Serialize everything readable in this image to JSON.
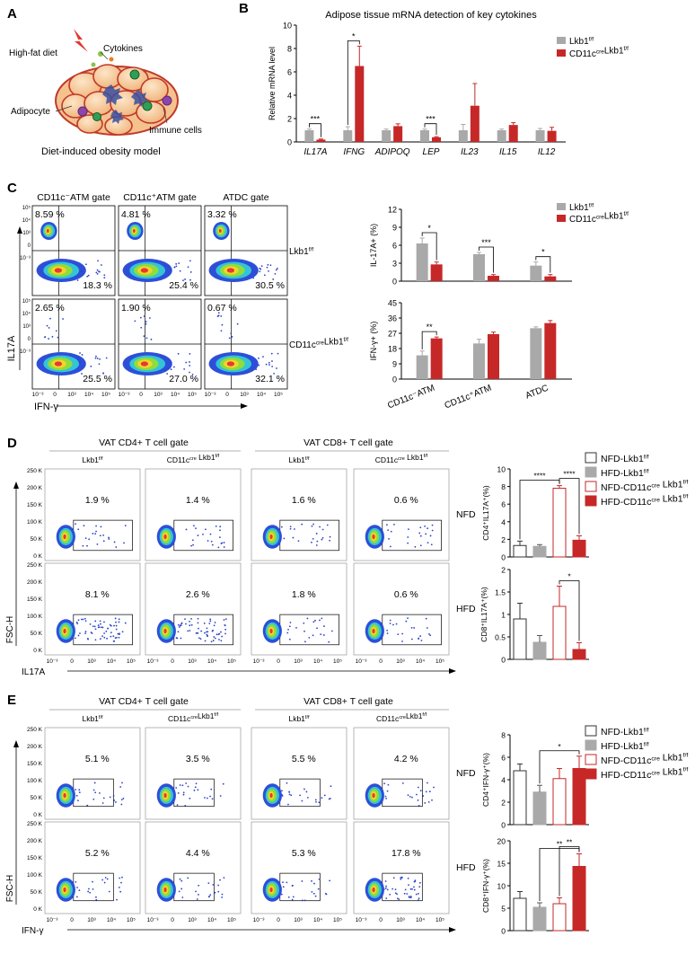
{
  "colors": {
    "gray": "#a9a9a9",
    "red": "#c62828",
    "dark": "#222222"
  },
  "panelA": {
    "letter": "A",
    "labels": {
      "diet": "High-fat diet",
      "cytokines": "Cytokines",
      "adipocyte": "Adipocyte",
      "immune": "Immune cells"
    },
    "caption": "Diet-induced obesity model"
  },
  "panelB": {
    "letter": "B"
  },
  "panelC": {
    "letter": "C",
    "gates": [
      "CD11c⁻ATM gate",
      "CD11c⁺ATM gate",
      "ATDC gate"
    ],
    "rows": [
      {
        "label": "Lkb1f/f",
        "values": [
          [
            "8.59 %",
            "18.3 %"
          ],
          [
            "4.81 %",
            "25.4 %"
          ],
          [
            "3.32 %",
            "30.5 %"
          ]
        ]
      },
      {
        "label": "CD11ccreLkb1f/f",
        "values": [
          [
            "2.65 %",
            "25.5 %"
          ],
          [
            "1.90 %",
            "27.0 %"
          ],
          [
            "0.67 %",
            "32.1 %"
          ]
        ]
      }
    ],
    "yaxis": "IL17A",
    "xaxis": "IFN-γ",
    "yticks": [
      "10⁵",
      "10⁴",
      "10³",
      "0",
      "10⁻³"
    ],
    "xticks": [
      "10⁻³",
      "0",
      "10³",
      "10⁴",
      "10⁵"
    ]
  },
  "panelD": {
    "letter": "D",
    "groups": [
      "VAT CD4+ T cell gate",
      "VAT CD8+ T cell gate"
    ],
    "cols": [
      "Lkb1f/f",
      "CD11ccre Lkb1f/f",
      "Lkb1f/f",
      "CD11ccre Lkb1f/f"
    ],
    "rowLabels": [
      "NFD",
      "HFD"
    ],
    "values": [
      [
        "1.9 %",
        "1.4 %",
        "1.6 %",
        "0.6 %"
      ],
      [
        "8.1 %",
        "2.6 %",
        "1.8 %",
        "0.6 %"
      ]
    ],
    "yaxis": "FSC-H",
    "xaxis": "IL17A",
    "yticks": [
      "250 K",
      "200 K",
      "150 K",
      "100 K",
      "50 K",
      "0 K"
    ],
    "xticks": [
      "10⁻³",
      "0",
      "10³",
      "10⁴",
      "10⁵"
    ],
    "legend": [
      "NFD-Lkb1f/f",
      "HFD-Lkb1f/f",
      "NFD-CD11ccre Lkb1f/f",
      "HFD-CD11ccre Lkb1f/f"
    ]
  },
  "panelE": {
    "letter": "E",
    "groups": [
      "VAT CD4+ T cell gate",
      "VAT CD8+ T cell gate"
    ],
    "cols": [
      "Lkb1f/f",
      "CD11ccreLkb1f/f",
      "Lkb1f/f",
      "CD11ccreLkb1f/f"
    ],
    "rowLabels": [
      "NFD",
      "HFD"
    ],
    "values": [
      [
        "5.1 %",
        "3.5 %",
        "5.5 %",
        "4.2 %"
      ],
      [
        "5.2 %",
        "4.4 %",
        "5.3 %",
        "17.8 %"
      ]
    ],
    "yaxis": "FSC-H",
    "xaxis": "IFN-γ",
    "yticks": [
      "250 K",
      "200 K",
      "150 K",
      "100 K",
      "50 K",
      "0 K"
    ],
    "xticks": [
      "10⁻³",
      "0",
      "10³",
      "10⁴",
      "10⁵"
    ],
    "legend": [
      "NFD-Lkb1f/f",
      "HFD-Lkb1f/f",
      "NFD-CD11ccre Lkb1f/f",
      "HFD-CD11ccre Lkb1f/f"
    ]
  },
  "chart_data": [
    {
      "id": "B",
      "type": "bar",
      "title": "Adipose tissue mRNA detection of key cytokines",
      "categories": [
        "IL17A",
        "IFNG",
        "ADIPOQ",
        "LEP",
        "IL23",
        "IL15",
        "IL12"
      ],
      "series": [
        {
          "name": "Lkb1f/f",
          "values": [
            1.0,
            1.0,
            1.0,
            1.0,
            1.0,
            1.0,
            1.0
          ],
          "errors": [
            0.1,
            0.3,
            0.1,
            0.1,
            0.5,
            0.1,
            0.15
          ]
        },
        {
          "name": "CD11ccreLkb1f/f",
          "values": [
            0.2,
            6.5,
            1.35,
            0.4,
            3.1,
            1.45,
            0.95
          ],
          "errors": [
            0.05,
            1.7,
            0.2,
            0.05,
            1.9,
            0.2,
            0.3
          ]
        }
      ],
      "ylabel": "Relative mRNA level",
      "ylim": [
        0,
        10
      ],
      "yticks": [
        0,
        2,
        4,
        6,
        8,
        10
      ],
      "significance": [
        {
          "cat": 0,
          "label": "***"
        },
        {
          "cat": 1,
          "label": "*"
        },
        {
          "cat": 3,
          "label": "***"
        }
      ]
    },
    {
      "id": "C1",
      "type": "bar",
      "categories": [
        "CD11c⁻ATM",
        "CD11c⁺ATM",
        "ATDC"
      ],
      "series": [
        {
          "name": "Lkb1f/f",
          "values": [
            6.3,
            4.5,
            2.6
          ],
          "errors": [
            0.9,
            0.3,
            0.6
          ]
        },
        {
          "name": "CD11ccreLkb1f/f",
          "values": [
            2.8,
            0.9,
            0.8
          ],
          "errors": [
            0.4,
            0.2,
            0.3
          ]
        }
      ],
      "ylabel": "IL-17A+ (%)",
      "ylim": [
        0,
        12
      ],
      "yticks": [
        0,
        3,
        6,
        9,
        12
      ],
      "significance": [
        {
          "cat": 0,
          "label": "*"
        },
        {
          "cat": 1,
          "label": "***"
        },
        {
          "cat": 2,
          "label": "*"
        }
      ]
    },
    {
      "id": "C2",
      "type": "bar",
      "categories": [
        "CD11c⁻ATM",
        "CD11c⁺ATM",
        "ATDC"
      ],
      "series": [
        {
          "name": "Lkb1f/f",
          "values": [
            14,
            21,
            30
          ],
          "errors": [
            2.5,
            2.5,
            0.8
          ]
        },
        {
          "name": "CD11ccreLkb1f/f",
          "values": [
            24,
            26.5,
            33
          ],
          "errors": [
            0.8,
            1.2,
            1.5
          ]
        }
      ],
      "ylabel": "IFN-γ+ (%)",
      "ylim": [
        0,
        45
      ],
      "yticks": [
        0,
        9,
        18,
        27,
        36,
        45
      ],
      "significance": [
        {
          "cat": 0,
          "label": "**"
        }
      ]
    },
    {
      "id": "D1",
      "type": "bar",
      "categories": [
        "NFD-Lkb1f/f",
        "HFD-Lkb1f/f",
        "NFD-CD11ccre Lkb1f/f",
        "HFD-CD11ccre Lkb1f/f"
      ],
      "values": [
        1.3,
        1.2,
        7.8,
        1.9
      ],
      "errors": [
        0.5,
        0.2,
        0.3,
        0.5
      ],
      "ylabel": "CD4⁺IL17A⁺(%)",
      "ylim": [
        0,
        10
      ],
      "yticks": [
        0,
        2,
        4,
        6,
        8,
        10
      ],
      "significance": [
        {
          "from": 0,
          "to": 2,
          "label": "****"
        },
        {
          "from": 2,
          "to": 3,
          "label": "****"
        }
      ]
    },
    {
      "id": "D2",
      "type": "bar",
      "categories": [
        "NFD-Lkb1f/f",
        "HFD-Lkb1f/f",
        "NFD-CD11ccre Lkb1f/f",
        "HFD-CD11ccre Lkb1f/f"
      ],
      "values": [
        0.9,
        0.38,
        1.18,
        0.22
      ],
      "errors": [
        0.35,
        0.15,
        0.45,
        0.15
      ],
      "ylabel": "CD8⁺IL17A⁺(%)",
      "ylim": [
        0,
        2
      ],
      "yticks": [
        0.0,
        0.5,
        1.0,
        1.5,
        2.0
      ],
      "significance": [
        {
          "from": 2,
          "to": 3,
          "label": "*"
        }
      ]
    },
    {
      "id": "E1",
      "type": "bar",
      "categories": [
        "NFD-Lkb1f/f",
        "HFD-Lkb1f/f",
        "NFD-CD11ccre Lkb1f/f",
        "HFD-CD11ccre Lkb1f/f"
      ],
      "values": [
        4.8,
        2.9,
        4.1,
        5.0
      ],
      "errors": [
        0.6,
        0.6,
        0.9,
        1.1
      ],
      "ylabel": "CD4⁺IFN-γ⁺(%)",
      "ylim": [
        0,
        8
      ],
      "yticks": [
        0,
        2,
        4,
        6,
        8
      ],
      "significance": [
        {
          "from": 1,
          "to": 3,
          "label": "*"
        }
      ]
    },
    {
      "id": "E2",
      "type": "bar",
      "categories": [
        "NFD-Lkb1f/f",
        "HFD-Lkb1f/f",
        "NFD-CD11ccre Lkb1f/f",
        "HFD-CD11ccre Lkb1f/f"
      ],
      "values": [
        7.2,
        5.2,
        6.0,
        14.3
      ],
      "errors": [
        1.5,
        1.0,
        1.3,
        2.8
      ],
      "ylabel": "CD8⁺IFN-γ⁺(%)",
      "ylim": [
        0,
        20
      ],
      "yticks": [
        0,
        5,
        10,
        15,
        20
      ],
      "significance": [
        {
          "from": 1,
          "to": 3,
          "label": "**"
        },
        {
          "from": 2,
          "to": 3,
          "label": "**"
        }
      ]
    }
  ]
}
